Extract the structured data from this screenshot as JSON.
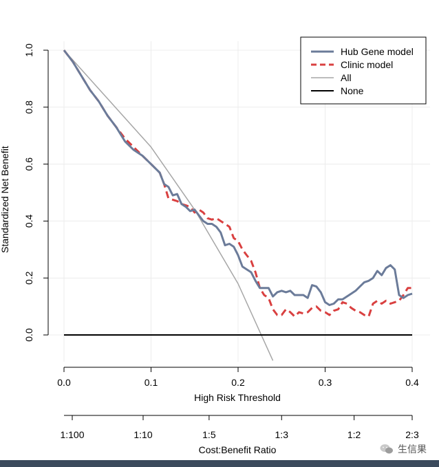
{
  "chart_data": {
    "type": "line",
    "ylabel": "Standardized Net Benefit",
    "xlabel": "High Risk Threshold",
    "xlim": [
      0,
      0.4
    ],
    "ylim": [
      -0.09,
      1.05
    ],
    "x_ticks": [
      "0.0",
      "0.1",
      "0.2",
      "0.3",
      "0.4"
    ],
    "y_ticks": [
      "0.0",
      "0.2",
      "0.4",
      "0.6",
      "0.8",
      "1.0"
    ],
    "grid": true,
    "legend_position": "top-right",
    "secondary_axis": {
      "label": "Cost:Benefit Ratio",
      "ticks": [
        {
          "x": 0.0,
          "label": "1:100"
        },
        {
          "x": 0.0909,
          "label": "1:10"
        },
        {
          "x": 0.1667,
          "label": "1:5"
        },
        {
          "x": 0.25,
          "label": "1:3"
        },
        {
          "x": 0.3333,
          "label": "1:2"
        },
        {
          "x": 0.4,
          "label": "2:3"
        }
      ]
    },
    "series": [
      {
        "name": "Hub Gene model",
        "color": "#6b7b99",
        "style": "solid",
        "x": [
          0.0,
          0.01,
          0.02,
          0.03,
          0.04,
          0.05,
          0.06,
          0.07,
          0.08,
          0.09,
          0.1,
          0.11,
          0.115,
          0.12,
          0.125,
          0.13,
          0.135,
          0.14,
          0.145,
          0.15,
          0.155,
          0.16,
          0.165,
          0.17,
          0.175,
          0.18,
          0.185,
          0.19,
          0.195,
          0.2,
          0.205,
          0.21,
          0.215,
          0.22,
          0.225,
          0.23,
          0.235,
          0.24,
          0.245,
          0.25,
          0.255,
          0.26,
          0.265,
          0.27,
          0.275,
          0.28,
          0.285,
          0.29,
          0.295,
          0.3,
          0.305,
          0.31,
          0.315,
          0.32,
          0.325,
          0.33,
          0.335,
          0.34,
          0.345,
          0.35,
          0.355,
          0.36,
          0.365,
          0.37,
          0.375,
          0.38,
          0.385,
          0.39,
          0.395,
          0.4
        ],
        "y": [
          1.0,
          0.96,
          0.91,
          0.86,
          0.82,
          0.77,
          0.73,
          0.68,
          0.65,
          0.63,
          0.6,
          0.57,
          0.53,
          0.52,
          0.49,
          0.495,
          0.46,
          0.45,
          0.435,
          0.44,
          0.42,
          0.4,
          0.39,
          0.39,
          0.38,
          0.36,
          0.315,
          0.32,
          0.31,
          0.28,
          0.24,
          0.23,
          0.22,
          0.19,
          0.165,
          0.165,
          0.165,
          0.135,
          0.15,
          0.155,
          0.15,
          0.155,
          0.14,
          0.14,
          0.14,
          0.13,
          0.175,
          0.17,
          0.15,
          0.115,
          0.105,
          0.11,
          0.125,
          0.125,
          0.135,
          0.145,
          0.155,
          0.17,
          0.185,
          0.19,
          0.2,
          0.225,
          0.21,
          0.235,
          0.245,
          0.23,
          0.14,
          0.13,
          0.14,
          0.145
        ]
      },
      {
        "name": "Clinic model",
        "color": "#d94040",
        "style": "dashed",
        "x": [
          0.0,
          0.01,
          0.02,
          0.03,
          0.04,
          0.05,
          0.06,
          0.07,
          0.08,
          0.09,
          0.1,
          0.11,
          0.115,
          0.12,
          0.125,
          0.13,
          0.135,
          0.14,
          0.145,
          0.15,
          0.155,
          0.16,
          0.165,
          0.17,
          0.175,
          0.18,
          0.185,
          0.19,
          0.195,
          0.2,
          0.205,
          0.21,
          0.215,
          0.22,
          0.225,
          0.23,
          0.235,
          0.24,
          0.245,
          0.25,
          0.255,
          0.26,
          0.265,
          0.27,
          0.275,
          0.28,
          0.285,
          0.29,
          0.295,
          0.3,
          0.305,
          0.31,
          0.315,
          0.32,
          0.325,
          0.33,
          0.335,
          0.34,
          0.345,
          0.35,
          0.355,
          0.36,
          0.365,
          0.37,
          0.375,
          0.38,
          0.385,
          0.39,
          0.395,
          0.4
        ],
        "y": [
          1.0,
          0.96,
          0.91,
          0.86,
          0.82,
          0.77,
          0.73,
          0.69,
          0.66,
          0.63,
          0.6,
          0.57,
          0.53,
          0.48,
          0.475,
          0.47,
          0.46,
          0.455,
          0.45,
          0.43,
          0.44,
          0.43,
          0.41,
          0.405,
          0.41,
          0.4,
          0.39,
          0.38,
          0.34,
          0.33,
          0.3,
          0.28,
          0.26,
          0.22,
          0.165,
          0.14,
          0.13,
          0.09,
          0.07,
          0.07,
          0.09,
          0.08,
          0.065,
          0.08,
          0.075,
          0.08,
          0.095,
          0.1,
          0.085,
          0.08,
          0.07,
          0.085,
          0.09,
          0.115,
          0.11,
          0.095,
          0.085,
          0.08,
          0.07,
          0.065,
          0.11,
          0.12,
          0.11,
          0.12,
          0.11,
          0.115,
          0.12,
          0.14,
          0.165,
          0.165
        ]
      },
      {
        "name": "All",
        "color": "#a6a6a6",
        "style": "solid",
        "x": [
          0.0,
          0.05,
          0.1,
          0.15,
          0.2,
          0.24
        ],
        "y": [
          1.0,
          0.83,
          0.66,
          0.44,
          0.18,
          -0.09
        ]
      },
      {
        "name": "None",
        "color": "#000000",
        "style": "solid",
        "x": [
          0.0,
          0.4
        ],
        "y": [
          0.0,
          0.0
        ]
      }
    ]
  },
  "watermark": {
    "text": "生信果",
    "icon": "wechat-icon"
  }
}
